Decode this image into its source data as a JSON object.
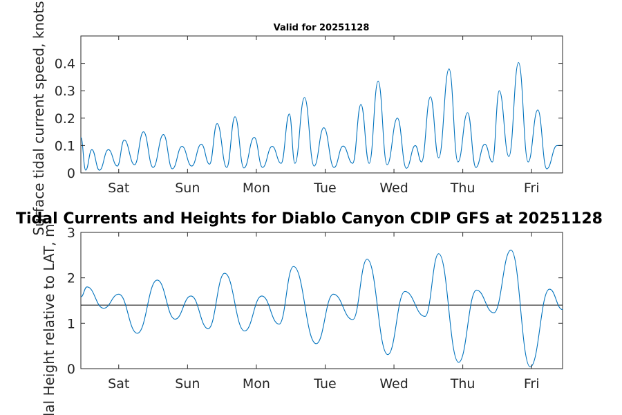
{
  "chart_data": [
    {
      "type": "line",
      "title": "Valid for 20251128",
      "ylabel": "Surface tidal current speed, knots",
      "xlabel": "",
      "xlim": [
        0,
        7
      ],
      "ylim": [
        0,
        0.5
      ],
      "yticks": [
        0,
        0.1,
        0.2,
        0.3,
        0.4
      ],
      "ytick_labels": [
        "0",
        "0.1",
        "0.2",
        "0.3",
        "0.4"
      ],
      "xtick_positions": [
        0.55,
        1.55,
        2.55,
        3.55,
        4.55,
        5.55,
        6.55
      ],
      "xtick_labels": [
        "Sat",
        "Sun",
        "Mon",
        "Tue",
        "Wed",
        "Thu",
        "Fri"
      ],
      "series_color": "#0072BD",
      "series": [
        {
          "name": "current speed",
          "x": [
            0,
            0.07,
            0.16,
            0.27,
            0.4,
            0.53,
            0.63,
            0.78,
            0.91,
            1.05,
            1.2,
            1.33,
            1.47,
            1.61,
            1.75,
            1.87,
            1.98,
            2.12,
            2.24,
            2.37,
            2.52,
            2.64,
            2.78,
            2.91,
            3.03,
            3.11,
            3.25,
            3.39,
            3.53,
            3.68,
            3.81,
            3.95,
            4.07,
            4.19,
            4.32,
            4.45,
            4.6,
            4.73,
            4.86,
            4.95,
            5.08,
            5.2,
            5.35,
            5.48,
            5.62,
            5.74,
            5.87,
            5.98,
            6.08,
            6.22,
            6.36,
            6.5,
            6.64,
            6.77,
            6.92,
            7.0
          ],
          "y": [
            0.13,
            0.01,
            0.085,
            0.01,
            0.085,
            0.025,
            0.12,
            0.03,
            0.15,
            0.02,
            0.14,
            0.015,
            0.097,
            0.025,
            0.105,
            0.032,
            0.18,
            0.02,
            0.205,
            0.018,
            0.13,
            0.02,
            0.097,
            0.035,
            0.215,
            0.035,
            0.275,
            0.025,
            0.165,
            0.02,
            0.098,
            0.035,
            0.25,
            0.035,
            0.335,
            0.03,
            0.2,
            0.017,
            0.1,
            0.04,
            0.278,
            0.055,
            0.38,
            0.04,
            0.22,
            0.02,
            0.105,
            0.04,
            0.3,
            0.06,
            0.403,
            0.04,
            0.23,
            0.015,
            0.1,
            0.1
          ]
        }
      ]
    },
    {
      "type": "line",
      "title": "Tidal Currents and Heights for Diablo Canyon CDIP GFS at 20251128",
      "ylabel": "Tidal Height relative to LAT, m",
      "xlabel": "",
      "xlim": [
        0,
        7
      ],
      "ylim": [
        0,
        3
      ],
      "yticks": [
        0,
        1,
        2,
        3
      ],
      "ytick_labels": [
        "0",
        "1",
        "2",
        "3"
      ],
      "xtick_positions": [
        0.55,
        1.55,
        2.55,
        3.55,
        4.55,
        5.55,
        6.55
      ],
      "xtick_labels": [
        "Sat",
        "Sun",
        "Mon",
        "Tue",
        "Wed",
        "Thu",
        "Fri"
      ],
      "reference_line": 1.4,
      "series_color": "#0072BD",
      "reference_color": "#000000",
      "series": [
        {
          "name": "tidal height",
          "x": [
            0,
            0.09,
            0.33,
            0.55,
            0.82,
            1.11,
            1.37,
            1.6,
            1.85,
            2.09,
            2.38,
            2.63,
            2.88,
            3.09,
            3.42,
            3.67,
            3.95,
            4.16,
            4.46,
            4.71,
            5.0,
            5.2,
            5.49,
            5.75,
            6.0,
            6.25,
            6.53,
            6.81,
            7.0
          ],
          "y": [
            1.58,
            1.8,
            1.33,
            1.64,
            0.78,
            1.95,
            1.09,
            1.6,
            0.88,
            2.1,
            0.83,
            1.6,
            0.98,
            2.25,
            0.55,
            1.64,
            1.08,
            2.41,
            0.31,
            1.7,
            1.15,
            2.53,
            0.14,
            1.73,
            1.23,
            2.61,
            0.04,
            1.75,
            1.3
          ]
        }
      ]
    }
  ]
}
